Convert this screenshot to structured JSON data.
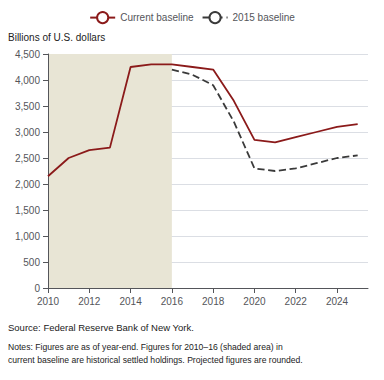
{
  "chart_data": {
    "type": "line",
    "ylabel": "Billions of U.S. dollars",
    "series": [
      {
        "name": "Current baseline",
        "color": "#8B1A1A",
        "line_style": "solid",
        "x": [
          2010,
          2011,
          2012,
          2013,
          2014,
          2015,
          2016,
          2017,
          2018,
          2019,
          2020,
          2021,
          2022,
          2023,
          2024,
          2025
        ],
        "values": [
          2150,
          2500,
          2650,
          2700,
          4250,
          4300,
          4300,
          4250,
          4200,
          3600,
          2850,
          2800,
          2900,
          3000,
          3100,
          3150
        ]
      },
      {
        "name": "2015 baseline",
        "color": "#3a3a3a",
        "line_style": "dashed",
        "x": [
          2016,
          2017,
          2018,
          2019,
          2020,
          2021,
          2022,
          2023,
          2024,
          2025
        ],
        "values": [
          4200,
          4100,
          3900,
          3200,
          2300,
          2250,
          2300,
          2400,
          2500,
          2550
        ]
      }
    ],
    "shade": {
      "x": [
        2010,
        2016
      ],
      "color": "#E8E5D5"
    },
    "xlim": [
      2010,
      2025.5
    ],
    "xticks": [
      2010,
      2012,
      2014,
      2016,
      2018,
      2020,
      2022,
      2024
    ],
    "ylim": [
      0,
      4500
    ],
    "yticks": [
      0,
      500,
      {
        "value": 1000,
        "label": "1,000"
      },
      {
        "value": 1500,
        "label": "1,500"
      },
      {
        "value": 2000,
        "label": "2,000"
      },
      {
        "value": 2500,
        "label": "2,500"
      },
      {
        "value": 3000,
        "label": "3,000"
      },
      {
        "value": 3500,
        "label": "3,500"
      },
      {
        "value": 4000,
        "label": "4,000"
      },
      {
        "value": 4500,
        "label": "4,500"
      }
    ],
    "grid": true,
    "legend": "top",
    "annotations": [
      "Source: Federal Reserve Bank of New York.",
      "Notes: Figures are as of year-end. Figures for 2010–16 (shaded area) in\ncurrent baseline are historical settled holdings. Projected figures are rounded."
    ]
  }
}
